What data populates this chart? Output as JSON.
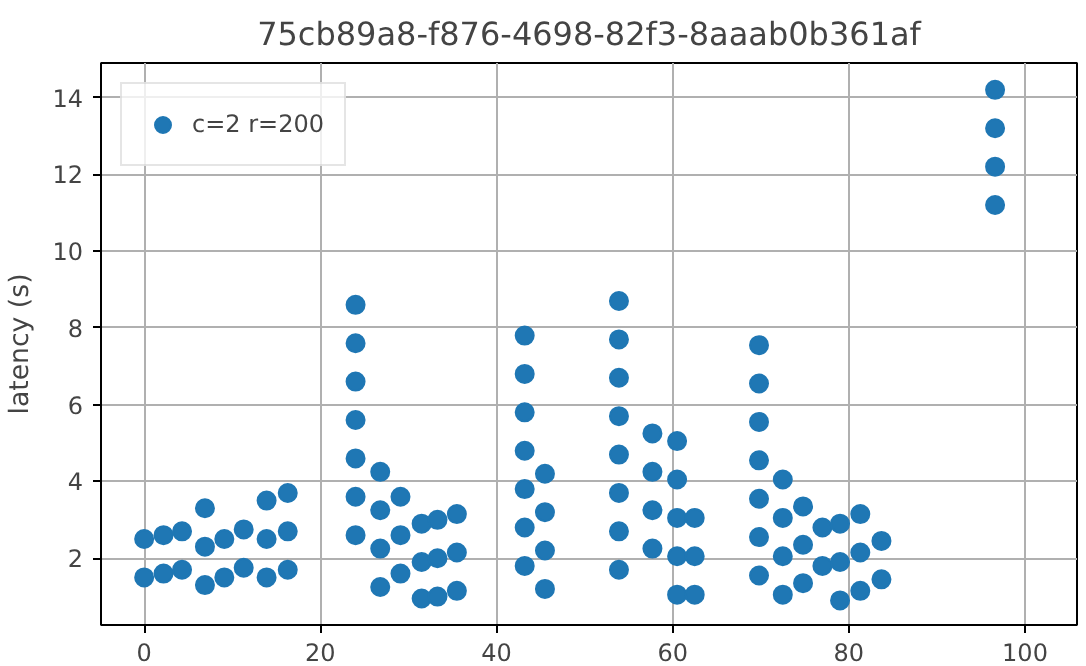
{
  "chart_data": {
    "type": "scatter",
    "title": "75cb89a8-f876-4698-82f3-8aaab0b361af",
    "ylabel": "latency (s)",
    "xlim": [
      -4.9,
      105.9
    ],
    "ylim": [
      0.26,
      14.9
    ],
    "xticks": [
      0,
      20,
      40,
      60,
      80,
      100
    ],
    "yticks": [
      2,
      4,
      6,
      8,
      10,
      12,
      14
    ],
    "grid": true,
    "legend": "top left",
    "marker": "circle",
    "series": [
      {
        "name": "c=2 r=200",
        "color": "#1f77b4",
        "x": [
          0,
          0,
          2.2,
          2.2,
          4.3,
          4.3,
          6.9,
          6.9,
          6.9,
          9.1,
          9.1,
          11.3,
          11.3,
          13.9,
          13.9,
          13.9,
          16.3,
          16.3,
          16.3,
          24,
          24,
          24,
          24,
          24,
          24,
          24,
          26.8,
          26.8,
          26.8,
          26.8,
          29.1,
          29.1,
          29.1,
          31.5,
          31.5,
          31.5,
          33.3,
          33.3,
          33.3,
          35.5,
          35.5,
          35.5,
          43.2,
          43.2,
          43.2,
          43.2,
          43.2,
          43.2,
          43.2,
          45.5,
          45.5,
          45.5,
          45.5,
          53.9,
          53.9,
          53.9,
          53.9,
          53.9,
          53.9,
          53.9,
          53.9,
          57.7,
          57.7,
          57.7,
          57.7,
          60.5,
          60.5,
          60.5,
          60.5,
          60.5,
          62.5,
          62.5,
          62.5,
          69.8,
          69.8,
          69.8,
          69.8,
          69.8,
          69.8,
          69.8,
          72.5,
          72.5,
          72.5,
          72.5,
          74.8,
          74.8,
          74.8,
          77,
          77,
          79,
          79,
          79,
          81.3,
          81.3,
          81.3,
          83.7,
          83.7,
          96.6,
          96.6,
          96.6,
          96.6
        ],
        "values": [
          2.5,
          1.5,
          2.6,
          1.6,
          2.7,
          1.7,
          3.3,
          2.3,
          1.3,
          2.5,
          1.5,
          2.75,
          1.75,
          3.5,
          2.5,
          1.5,
          3.7,
          2.7,
          1.7,
          8.6,
          7.6,
          6.6,
          5.6,
          4.6,
          3.6,
          2.6,
          4.25,
          3.25,
          2.25,
          1.25,
          3.6,
          2.6,
          1.6,
          2.9,
          1.9,
          0.95,
          3,
          2,
          1,
          3.15,
          2.15,
          1.15,
          7.8,
          6.8,
          5.8,
          4.8,
          3.8,
          2.8,
          1.8,
          4.2,
          3.2,
          2.2,
          1.2,
          8.7,
          7.7,
          6.7,
          5.7,
          4.7,
          3.7,
          2.7,
          1.7,
          5.25,
          4.25,
          3.25,
          2.25,
          5.05,
          4.05,
          3.05,
          2.05,
          1.05,
          3.05,
          2.05,
          1.05,
          7.55,
          6.55,
          5.55,
          4.55,
          3.55,
          2.55,
          1.55,
          4.05,
          3.05,
          2.05,
          1.05,
          3.35,
          2.35,
          1.35,
          2.8,
          1.8,
          2.9,
          1.9,
          0.9,
          3.15,
          2.15,
          1.15,
          2.45,
          1.45,
          14.2,
          13.2,
          12.2,
          11.2
        ]
      }
    ]
  }
}
